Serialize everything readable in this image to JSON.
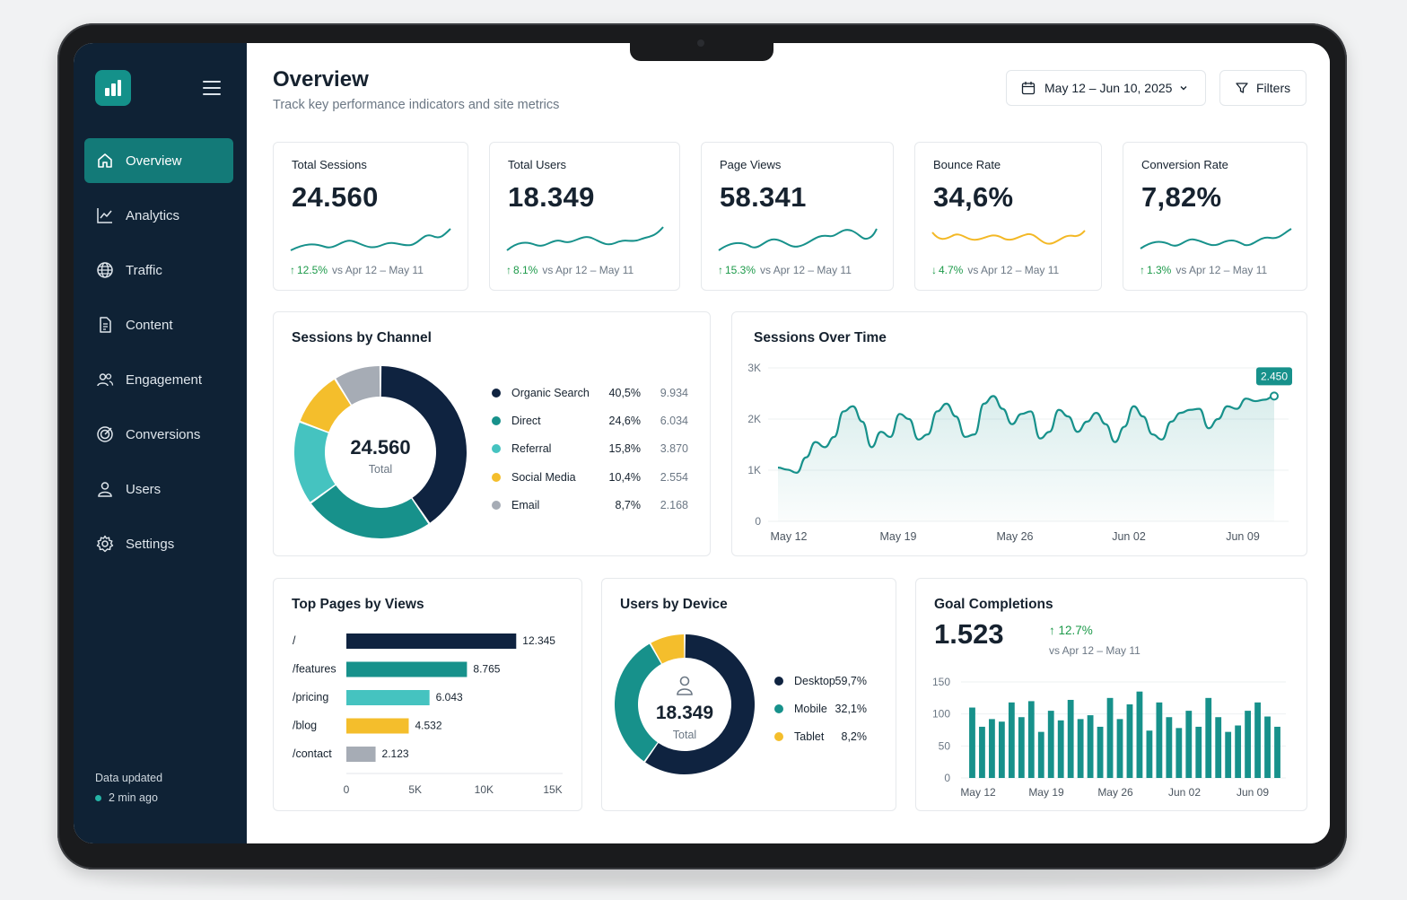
{
  "sidebar": {
    "items": [
      {
        "label": "Overview",
        "icon": "home-icon",
        "active": true
      },
      {
        "label": "Analytics",
        "icon": "line-chart-icon"
      },
      {
        "label": "Traffic",
        "icon": "globe-icon"
      },
      {
        "label": "Content",
        "icon": "document-icon"
      },
      {
        "label": "Engagement",
        "icon": "users-icon"
      },
      {
        "label": "Conversions",
        "icon": "target-icon"
      },
      {
        "label": "Users",
        "icon": "user-icon"
      },
      {
        "label": "Settings",
        "icon": "gear-icon"
      }
    ],
    "updated_label": "Data updated",
    "updated_time": "2 min ago"
  },
  "header": {
    "title": "Overview",
    "subtitle": "Track key performance indicators and site metrics",
    "date_range": "May 12 – Jun 10, 2025",
    "filters_label": "Filters"
  },
  "kpis": [
    {
      "label": "Total Sessions",
      "value": "24.560",
      "delta": "12.5%",
      "direction": "up",
      "compare": "vs Apr 12 – May 11",
      "color": "#17918b"
    },
    {
      "label": "Total Users",
      "value": "18.349",
      "delta": "8.1%",
      "direction": "up",
      "compare": "vs Apr 12 – May 11",
      "color": "#17918b"
    },
    {
      "label": "Page Views",
      "value": "58.341",
      "delta": "15.3%",
      "direction": "up",
      "compare": "vs Apr 12 – May 11",
      "color": "#17918b"
    },
    {
      "label": "Bounce Rate",
      "value": "34,6%",
      "delta": "4.7%",
      "direction": "down",
      "compare": "vs Apr 12 – May 11",
      "color": "#f3b825"
    },
    {
      "label": "Conversion Rate",
      "value": "7,82%",
      "delta": "1.3%",
      "direction": "up",
      "compare": "vs Apr 12 – May 11",
      "color": "#17918b"
    }
  ],
  "channels": {
    "title": "Sessions by Channel",
    "total": "24.560",
    "total_label": "Total"
  },
  "sessions_time": {
    "title": "Sessions Over Time",
    "tooltip": "2.450"
  },
  "top_pages": {
    "title": "Top Pages by Views"
  },
  "devices": {
    "title": "Users by Device",
    "total": "18.349",
    "total_label": "Total"
  },
  "goals": {
    "title": "Goal Completions",
    "value": "1.523",
    "delta": "12.7%",
    "compare": "vs Apr 12 – May 11"
  },
  "chart_data": [
    {
      "type": "pie",
      "title": "Sessions by Channel",
      "categories": [
        "Organic Search",
        "Direct",
        "Referral",
        "Social Media",
        "Email"
      ],
      "values": [
        9934,
        6034,
        3870,
        2554,
        2168
      ],
      "percent_labels": [
        "40,5%",
        "24,6%",
        "15,8%",
        "10,4%",
        "8,7%"
      ],
      "value_labels": [
        "9.934",
        "6.034",
        "3.870",
        "2.554",
        "2.168"
      ],
      "colors": [
        "#0f2340",
        "#17918b",
        "#45c3c0",
        "#f4be2c",
        "#a6acb5"
      ]
    },
    {
      "type": "area",
      "title": "Sessions Over Time",
      "x_ticks": [
        "May 12",
        "May 19",
        "May 26",
        "Jun 02",
        "Jun 09"
      ],
      "y_ticks": [
        "0",
        "1K",
        "2K",
        "3K"
      ],
      "ylim": [
        0,
        3000
      ],
      "values": [
        1050,
        1010,
        950,
        1250,
        1550,
        1450,
        1650,
        2150,
        2250,
        1950,
        1450,
        1750,
        1650,
        2100,
        2000,
        1600,
        1700,
        2150,
        2300,
        2050,
        1650,
        1700,
        2300,
        2450,
        2200,
        1900,
        2100,
        2150,
        1620,
        1750,
        2180,
        2050,
        1750,
        1950,
        2120,
        1900,
        1550,
        1850,
        2250,
        2050,
        1700,
        1600,
        1950,
        2120,
        2180,
        2200,
        1820,
        2000,
        2250,
        2200,
        2400,
        2350,
        2380,
        2450
      ],
      "tooltip": "2.450",
      "color": "#17918b"
    },
    {
      "type": "bar",
      "title": "Top Pages by Views",
      "orientation": "horizontal",
      "categories": [
        "/",
        "/features",
        "/pricing",
        "/blog",
        "/contact"
      ],
      "values": [
        12345,
        8765,
        6043,
        4532,
        2123
      ],
      "value_labels": [
        "12.345",
        "8.765",
        "6.043",
        "4.532",
        "2.123"
      ],
      "x_ticks": [
        "0",
        "5K",
        "10K",
        "15K"
      ],
      "xlim": [
        0,
        15000
      ],
      "colors": [
        "#0f2340",
        "#17918b",
        "#45c3c0",
        "#f4be2c",
        "#a6acb5"
      ]
    },
    {
      "type": "pie",
      "title": "Users by Device",
      "categories": [
        "Desktop",
        "Mobile",
        "Tablet"
      ],
      "values": [
        59.7,
        32.1,
        8.2
      ],
      "percent_labels": [
        "59,7%",
        "32,1%",
        "8,2%"
      ],
      "colors": [
        "#0f2340",
        "#17918b",
        "#f4be2c"
      ]
    },
    {
      "type": "bar",
      "title": "Goal Completions",
      "x_ticks": [
        "May 12",
        "May 19",
        "May 26",
        "Jun 02",
        "Jun 09"
      ],
      "y_ticks": [
        "0",
        "50",
        "100",
        "150"
      ],
      "ylim": [
        0,
        150
      ],
      "values": [
        110,
        80,
        92,
        88,
        118,
        95,
        120,
        72,
        105,
        90,
        122,
        92,
        98,
        80,
        125,
        92,
        115,
        135,
        74,
        118,
        95,
        78,
        105,
        80,
        125,
        95,
        72,
        82,
        105,
        118,
        96,
        80
      ],
      "color": "#17918b"
    }
  ]
}
